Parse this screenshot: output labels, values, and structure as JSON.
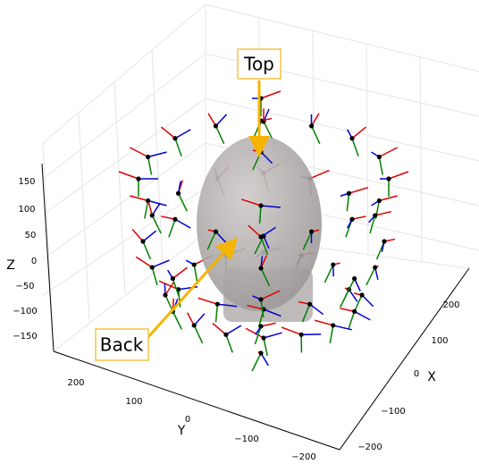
{
  "annotations": {
    "top": "Top",
    "back": "Back"
  },
  "axes": {
    "x": {
      "label": "X",
      "ticks": [
        "200",
        "100",
        "0",
        "−100",
        "−200"
      ]
    },
    "y": {
      "label": "Y",
      "ticks": [
        "200",
        "100",
        "0",
        "−100",
        "−200"
      ]
    },
    "z": {
      "label": "Z",
      "ticks": [
        "150",
        "100",
        "50",
        "0",
        "−50",
        "−100",
        "−150"
      ]
    }
  }
}
